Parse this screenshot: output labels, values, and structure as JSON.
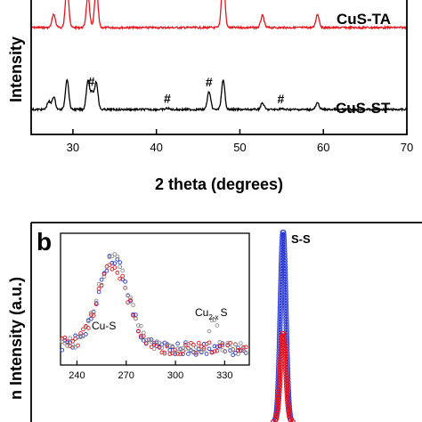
{
  "chart_data": [
    {
      "panel": "a",
      "type": "line",
      "xlabel": "2 theta (degrees)",
      "ylabel": "Intensity",
      "xlim": [
        25,
        70
      ],
      "xticks": [
        30,
        40,
        50,
        60,
        70
      ],
      "series": [
        {
          "name": "CuS-TA",
          "color": "#e8141b",
          "peaks": [
            [
              27.7,
              0.5
            ],
            [
              29.3,
              1.6
            ],
            [
              31.8,
              1.2
            ],
            [
              32.8,
              1.5
            ],
            [
              48.0,
              2.0
            ],
            [
              52.7,
              0.45
            ],
            [
              59.3,
              0.5
            ]
          ]
        },
        {
          "name": "CuS-ST",
          "color": "#000000",
          "peaks": [
            [
              27.1,
              0.25
            ],
            [
              27.7,
              0.4
            ],
            [
              29.3,
              0.95
            ],
            [
              31.8,
              0.9
            ],
            [
              32.3,
              0.5
            ],
            [
              32.8,
              0.85
            ],
            [
              41.3,
              0.04
            ],
            [
              46.3,
              0.55
            ],
            [
              48.0,
              0.9
            ],
            [
              52.7,
              0.2
            ],
            [
              54.9,
              0.03
            ],
            [
              59.3,
              0.2
            ]
          ]
        }
      ],
      "annotations": [
        {
          "text": "#",
          "x": 32.2,
          "series": "CuS-ST"
        },
        {
          "text": "#",
          "x": 41.3,
          "series": "CuS-ST"
        },
        {
          "text": "#",
          "x": 46.3,
          "series": "CuS-ST"
        },
        {
          "text": "#",
          "x": 54.9,
          "series": "CuS-ST"
        }
      ]
    },
    {
      "panel": "b",
      "label": "b",
      "type": "line",
      "ylabel": "n Intensity (a.u.)",
      "peak_label": "S-S",
      "series_colors": [
        "#2b3bd6",
        "#e8141b"
      ],
      "inset": {
        "type": "scatter",
        "xlim": [
          230,
          345
        ],
        "xticks": [
          240,
          270,
          300,
          330
        ],
        "annotations": [
          {
            "text": "Cu-S",
            "x": 262
          },
          {
            "main": "Cu",
            "sub": "2-x",
            "end": "S",
            "x": 323
          }
        ]
      }
    }
  ]
}
